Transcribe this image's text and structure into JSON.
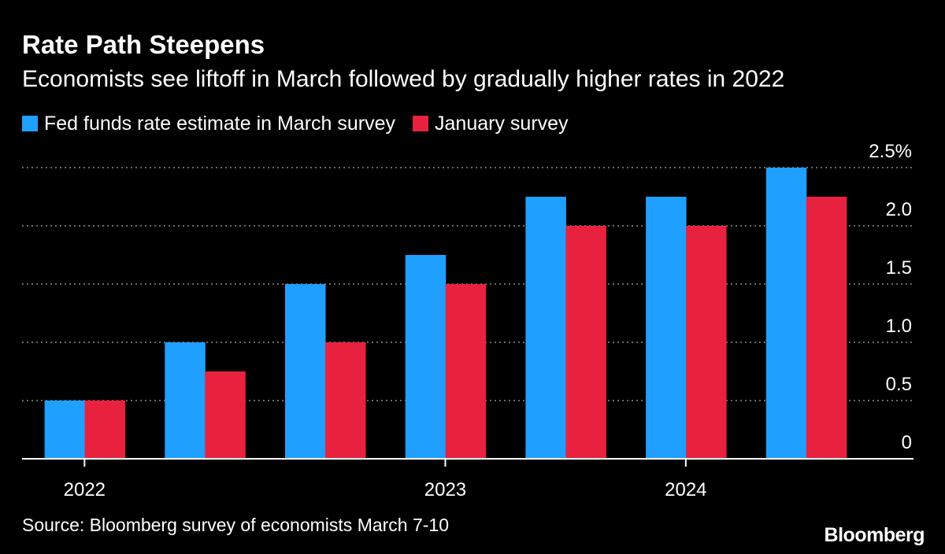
{
  "header": {
    "title": "Rate Path Steepens",
    "subtitle": "Economists see liftoff in March followed by gradually higher rates in 2022"
  },
  "footer": {
    "source": "Source: Bloomberg survey of economists March 7-10",
    "logo_text": "Bloomberg"
  },
  "colors": {
    "background": "#000000",
    "march_series": "#1f9fff",
    "january_series": "#e8213f",
    "gridline": "#8c8c8c",
    "text": "#ffffff"
  },
  "chart_data": {
    "type": "bar",
    "title": "Rate Path Steepens",
    "subtitle": "Economists see liftoff in March followed by gradually higher rates in 2022",
    "categories": [
      "2022",
      "",
      "",
      "2023",
      "",
      "2024",
      ""
    ],
    "series": [
      {
        "name": "Fed funds rate estimate in March survey",
        "values": [
          0.5,
          1.0,
          1.5,
          1.75,
          2.25,
          2.25,
          2.5
        ]
      },
      {
        "name": "January survey",
        "values": [
          0.5,
          0.75,
          1.0,
          1.5,
          2.0,
          2.0,
          2.25
        ]
      }
    ],
    "ylim": [
      0,
      2.5
    ],
    "yticks": [
      "0",
      "0.5",
      "1.0",
      "1.5",
      "2.0",
      "2.5%"
    ],
    "yaxis_position": "right",
    "xlabel": "",
    "ylabel": "",
    "grid": true,
    "legend_position": "top-left"
  }
}
